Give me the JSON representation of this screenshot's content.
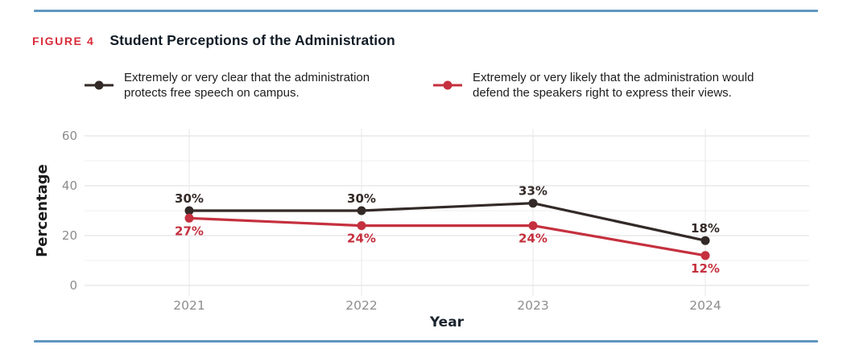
{
  "header": {
    "figure_label": "FIGURE 4",
    "title": "Student Perceptions of the Administration"
  },
  "legend": {
    "items": [
      {
        "icon": "line-dot-marker",
        "color": "#332a27",
        "lines": [
          "Extremely or very clear that the administration",
          "protects free speech on campus."
        ]
      },
      {
        "icon": "line-dot-marker",
        "color": "#c5303e",
        "lines": [
          "Extremely or very likely that the administration would",
          "defend the speakers right to express their views."
        ]
      }
    ]
  },
  "chart_data": {
    "type": "line",
    "x": [
      2021,
      2022,
      2023,
      2024
    ],
    "series": [
      {
        "name": "Extremely or very clear that the administration protects free speech on campus.",
        "values": [
          30,
          30,
          33,
          18
        ],
        "color": "#332a27",
        "label_position": "above"
      },
      {
        "name": "Extremely or very likely that the administration would defend the speakers right to express their views.",
        "values": [
          27,
          24,
          24,
          12
        ],
        "color": "#c5303e",
        "label_position": "below"
      }
    ],
    "data_label_suffix": "%",
    "xlabel": "Year",
    "ylabel": "Percentage",
    "ylim": [
      0,
      60
    ],
    "yticks": [
      0,
      20,
      40,
      60
    ],
    "yticks_minor": [
      10,
      30,
      50
    ],
    "grid": true,
    "legend_position": "top"
  },
  "palette": {
    "accent_blue": "#5f97c0",
    "figure_label_red": "#d92b39",
    "grid_major": "#dedede",
    "grid_minor": "#efefef",
    "grid_vertical": "#e7e7e7",
    "tick_gray": "#8d8d8d",
    "axis_title_dark": "#1b242e"
  }
}
